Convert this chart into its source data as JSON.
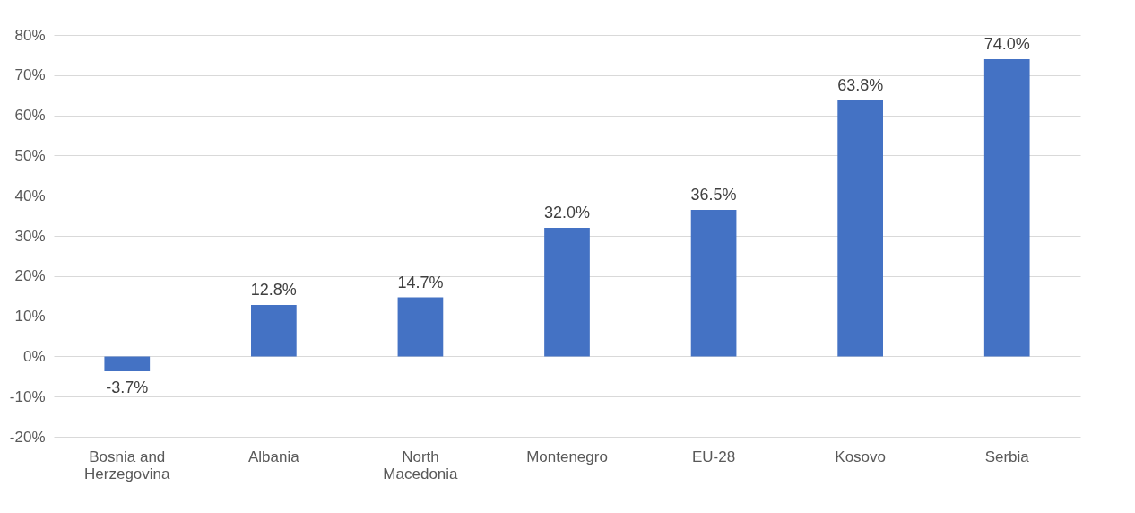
{
  "chart_data": {
    "type": "bar",
    "categories": [
      "Bosnia and Herzegovina",
      "Albania",
      "North Macedonia",
      "Montenegro",
      "EU-28",
      "Kosovo",
      "Serbia"
    ],
    "values": [
      -3.7,
      12.8,
      14.7,
      32.0,
      36.5,
      63.8,
      74.0
    ],
    "value_labels": [
      "-3.7%",
      "12.8%",
      "14.7%",
      "32.0%",
      "36.5%",
      "63.8%",
      "74.0%"
    ],
    "color": "#4472c4",
    "ylim": [
      -20,
      80
    ],
    "yticks": [
      {
        "value": -20,
        "label": "-20%"
      },
      {
        "value": -10,
        "label": "-10%"
      },
      {
        "value": 0,
        "label": "0%"
      },
      {
        "value": 10,
        "label": "10%"
      },
      {
        "value": 20,
        "label": "20%"
      },
      {
        "value": 30,
        "label": "30%"
      },
      {
        "value": 40,
        "label": "40%"
      },
      {
        "value": 50,
        "label": "50%"
      },
      {
        "value": 60,
        "label": "60%"
      },
      {
        "value": 70,
        "label": "70%"
      },
      {
        "value": 80,
        "label": "80%"
      }
    ],
    "grid": "y"
  }
}
